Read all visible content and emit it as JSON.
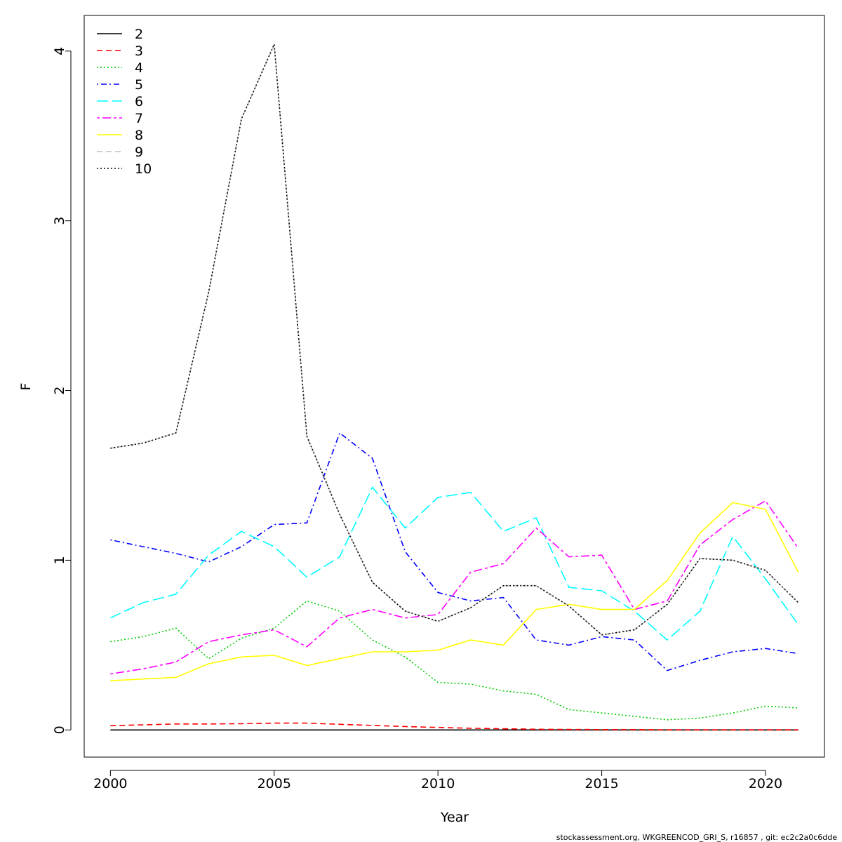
{
  "chart_data": {
    "type": "line",
    "xlabel": "Year",
    "ylabel": "F",
    "xlim": [
      1999.2,
      2021.8
    ],
    "ylim": [
      -0.16,
      4.21
    ],
    "x_ticks": [
      2000,
      2005,
      2010,
      2015,
      2020
    ],
    "y_ticks": [
      0,
      1,
      2,
      3,
      4
    ],
    "legend_position": "top-left",
    "grid": false,
    "footer": "stockassessment.org, WKGREENCOD_GRI_S, r16857 , git: ec2c2a0c6dde",
    "x": [
      2000,
      2001,
      2002,
      2003,
      2004,
      2005,
      2006,
      2007,
      2008,
      2009,
      2010,
      2011,
      2012,
      2013,
      2014,
      2015,
      2016,
      2017,
      2018,
      2019,
      2020,
      2021
    ],
    "series": [
      {
        "name": "2",
        "color": "#000000",
        "dash": "solid",
        "values": [
          0.0,
          0.0,
          0.0,
          0.0,
          0.0,
          0.0,
          0.0,
          0.0,
          0.0,
          0.0,
          0.0,
          0.0,
          0.0,
          0.0,
          0.0,
          0.0,
          0.0,
          0.0,
          0.0,
          0.0,
          0.0,
          0.0
        ]
      },
      {
        "name": "3",
        "color": "#ff0000",
        "dash": "dashed",
        "values": [
          0.025,
          0.03,
          0.035,
          0.035,
          0.037,
          0.04,
          0.04,
          0.033,
          0.027,
          0.02,
          0.015,
          0.01,
          0.007,
          0.004,
          0.003,
          0.002,
          0.002,
          0.001,
          0.001,
          0.001,
          0.001,
          0.001
        ]
      },
      {
        "name": "4",
        "color": "#00cd00",
        "dash": "dotted",
        "values": [
          0.52,
          0.55,
          0.6,
          0.42,
          0.54,
          0.6,
          0.76,
          0.7,
          0.53,
          0.43,
          0.28,
          0.27,
          0.23,
          0.21,
          0.12,
          0.1,
          0.08,
          0.06,
          0.07,
          0.1,
          0.14,
          0.13
        ]
      },
      {
        "name": "5",
        "color": "#0000ff",
        "dash": "dotdash",
        "values": [
          1.12,
          1.08,
          1.04,
          0.99,
          1.08,
          1.21,
          1.22,
          1.75,
          1.6,
          1.05,
          0.81,
          0.76,
          0.78,
          0.53,
          0.5,
          0.55,
          0.53,
          0.35,
          0.41,
          0.46,
          0.48,
          0.45
        ]
      },
      {
        "name": "6",
        "color": "#00ffff",
        "dash": "longdash",
        "values": [
          0.66,
          0.75,
          0.8,
          1.03,
          1.17,
          1.08,
          0.9,
          1.02,
          1.43,
          1.19,
          1.37,
          1.4,
          1.17,
          1.25,
          0.84,
          0.82,
          0.7,
          0.53,
          0.7,
          1.14,
          0.89,
          0.62
        ]
      },
      {
        "name": "7",
        "color": "#ff00ff",
        "dash": "twodash",
        "values": [
          0.33,
          0.36,
          0.4,
          0.52,
          0.56,
          0.59,
          0.49,
          0.66,
          0.71,
          0.66,
          0.68,
          0.93,
          0.98,
          1.19,
          1.02,
          1.03,
          0.71,
          0.76,
          1.09,
          1.24,
          1.35,
          1.07
        ]
      },
      {
        "name": "8",
        "color": "#ffff00",
        "dash": "solid",
        "values": [
          0.29,
          0.3,
          0.31,
          0.39,
          0.43,
          0.44,
          0.38,
          0.42,
          0.46,
          0.46,
          0.47,
          0.53,
          0.5,
          0.71,
          0.74,
          0.71,
          0.71,
          0.88,
          1.16,
          1.34,
          1.3,
          0.93
        ]
      },
      {
        "name": "9",
        "color": "#bebebe",
        "dash": "dashed",
        "values": [
          1.66,
          1.69,
          1.75,
          2.58,
          3.6,
          4.04,
          1.73,
          1.27,
          0.87,
          0.7,
          0.64,
          0.72,
          0.85,
          0.85,
          0.73,
          0.56,
          0.59,
          0.74,
          1.01,
          1.0,
          0.94,
          0.75
        ]
      },
      {
        "name": "10",
        "color": "#000000",
        "dash": "dotted",
        "values": [
          1.66,
          1.69,
          1.75,
          2.58,
          3.6,
          4.04,
          1.73,
          1.27,
          0.87,
          0.7,
          0.64,
          0.72,
          0.85,
          0.85,
          0.73,
          0.56,
          0.59,
          0.74,
          1.01,
          1.0,
          0.94,
          0.75
        ]
      }
    ]
  }
}
